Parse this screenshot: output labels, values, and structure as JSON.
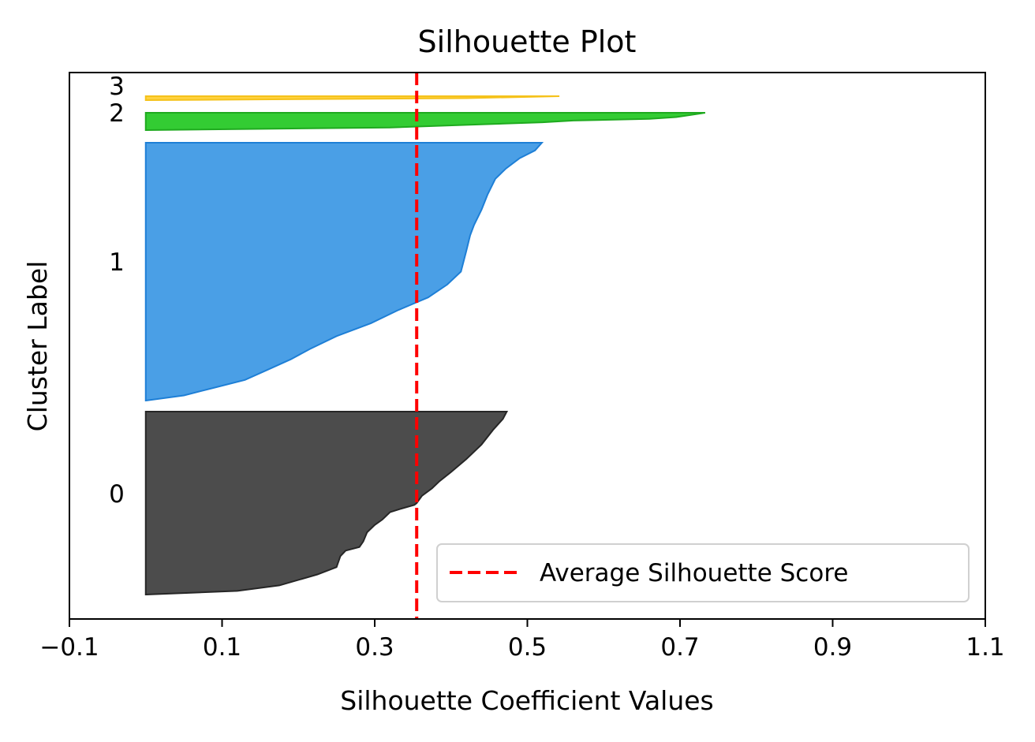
{
  "chart_data": {
    "type": "area",
    "title": "Silhouette Plot",
    "xlabel": "Silhouette Coefficient Values",
    "ylabel": "Cluster Label",
    "xlim": [
      -0.1,
      1.1
    ],
    "xticks": [
      -0.1,
      0.1,
      0.3,
      0.5,
      0.7,
      0.9,
      1.1
    ],
    "xtick_labels": [
      "−0.1",
      "0.1",
      "0.3",
      "0.5",
      "0.7",
      "0.9",
      "1.1"
    ],
    "grid": false,
    "legend_position": "lower-right",
    "average_silhouette_score": 0.355,
    "average_line_color": "#ff0000",
    "legend": {
      "label": "Average Silhouette Score"
    },
    "clusters": [
      {
        "label": "0",
        "color": "#4c4c4c",
        "edge_color": "#262626",
        "profile": [
          [
            0.0,
            0.473
          ],
          [
            0.04,
            0.468
          ],
          [
            0.1,
            0.455
          ],
          [
            0.18,
            0.44
          ],
          [
            0.26,
            0.42
          ],
          [
            0.33,
            0.4
          ],
          [
            0.38,
            0.385
          ],
          [
            0.42,
            0.375
          ],
          [
            0.46,
            0.362
          ],
          [
            0.5,
            0.355
          ],
          [
            0.51,
            0.352
          ],
          [
            0.53,
            0.335
          ],
          [
            0.55,
            0.32
          ],
          [
            0.59,
            0.31
          ],
          [
            0.62,
            0.3
          ],
          [
            0.66,
            0.29
          ],
          [
            0.71,
            0.285
          ],
          [
            0.74,
            0.28
          ],
          [
            0.76,
            0.262
          ],
          [
            0.79,
            0.255
          ],
          [
            0.85,
            0.25
          ],
          [
            0.89,
            0.225
          ],
          [
            0.95,
            0.175
          ],
          [
            0.98,
            0.12
          ],
          [
            1.0,
            0.0
          ]
        ]
      },
      {
        "label": "1",
        "color": "#4a9fe6",
        "edge_color": "#1e7fd6",
        "profile": [
          [
            0.0,
            0.519
          ],
          [
            0.03,
            0.51
          ],
          [
            0.06,
            0.49
          ],
          [
            0.1,
            0.472
          ],
          [
            0.14,
            0.458
          ],
          [
            0.2,
            0.448
          ],
          [
            0.26,
            0.44
          ],
          [
            0.32,
            0.43
          ],
          [
            0.36,
            0.425
          ],
          [
            0.42,
            0.42
          ],
          [
            0.5,
            0.413
          ],
          [
            0.55,
            0.395
          ],
          [
            0.6,
            0.37
          ],
          [
            0.65,
            0.33
          ],
          [
            0.7,
            0.295
          ],
          [
            0.75,
            0.25
          ],
          [
            0.8,
            0.215
          ],
          [
            0.84,
            0.19
          ],
          [
            0.88,
            0.16
          ],
          [
            0.92,
            0.13
          ],
          [
            0.95,
            0.09
          ],
          [
            0.98,
            0.05
          ],
          [
            1.0,
            0.0
          ]
        ]
      },
      {
        "label": "2",
        "color": "#33cc33",
        "edge_color": "#1faa1f",
        "profile": [
          [
            0.0,
            0.733
          ],
          [
            0.12,
            0.715
          ],
          [
            0.25,
            0.695
          ],
          [
            0.35,
            0.66
          ],
          [
            0.45,
            0.56
          ],
          [
            0.55,
            0.52
          ],
          [
            0.7,
            0.42
          ],
          [
            0.85,
            0.32
          ],
          [
            1.0,
            0.0
          ]
        ]
      },
      {
        "label": "3",
        "color": "#ffd23f",
        "edge_color": "#f5c21b",
        "profile": [
          [
            0.0,
            0.542
          ],
          [
            0.5,
            0.42
          ],
          [
            1.0,
            0.0
          ]
        ]
      }
    ]
  }
}
